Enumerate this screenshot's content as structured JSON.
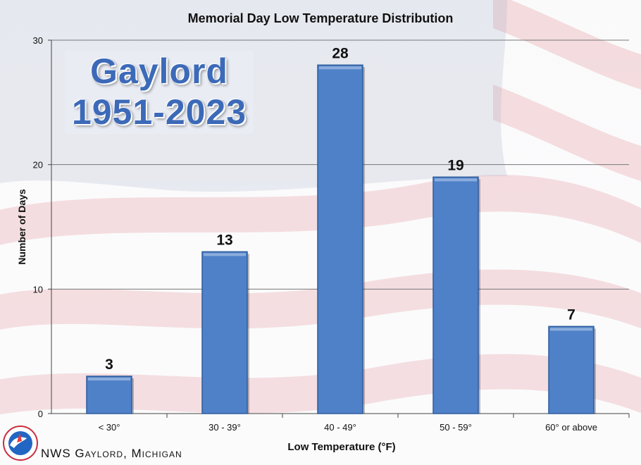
{
  "chart_data": {
    "type": "bar",
    "title": "Memorial Day Low Temperature Distribution",
    "xlabel": "Low Temperature (°F)",
    "ylabel": "Number of Days",
    "categories": [
      "< 30°",
      "30 - 39°",
      "40 - 49°",
      "50 - 59°",
      "60° or above"
    ],
    "values": [
      3,
      13,
      28,
      19,
      7
    ],
    "data_labels": [
      "3",
      "13",
      "28",
      "19",
      "7"
    ],
    "ylim": [
      0,
      30
    ],
    "yticks": [
      0,
      10,
      20,
      30
    ],
    "ytick_labels": [
      "0",
      "10",
      "20",
      "30"
    ],
    "grid": true,
    "legend": "none",
    "bar_color": "#4f81c9"
  },
  "station": {
    "name": "Gaylord",
    "years": "1951-2023"
  },
  "footer": "NWS Gaylord, Michigan",
  "logo": {
    "icon": "nws-logo-icon"
  },
  "colors": {
    "flag_red": "#c92d3d",
    "flag_blue": "#2b3f7a",
    "station_text": "#3c6ab8"
  }
}
